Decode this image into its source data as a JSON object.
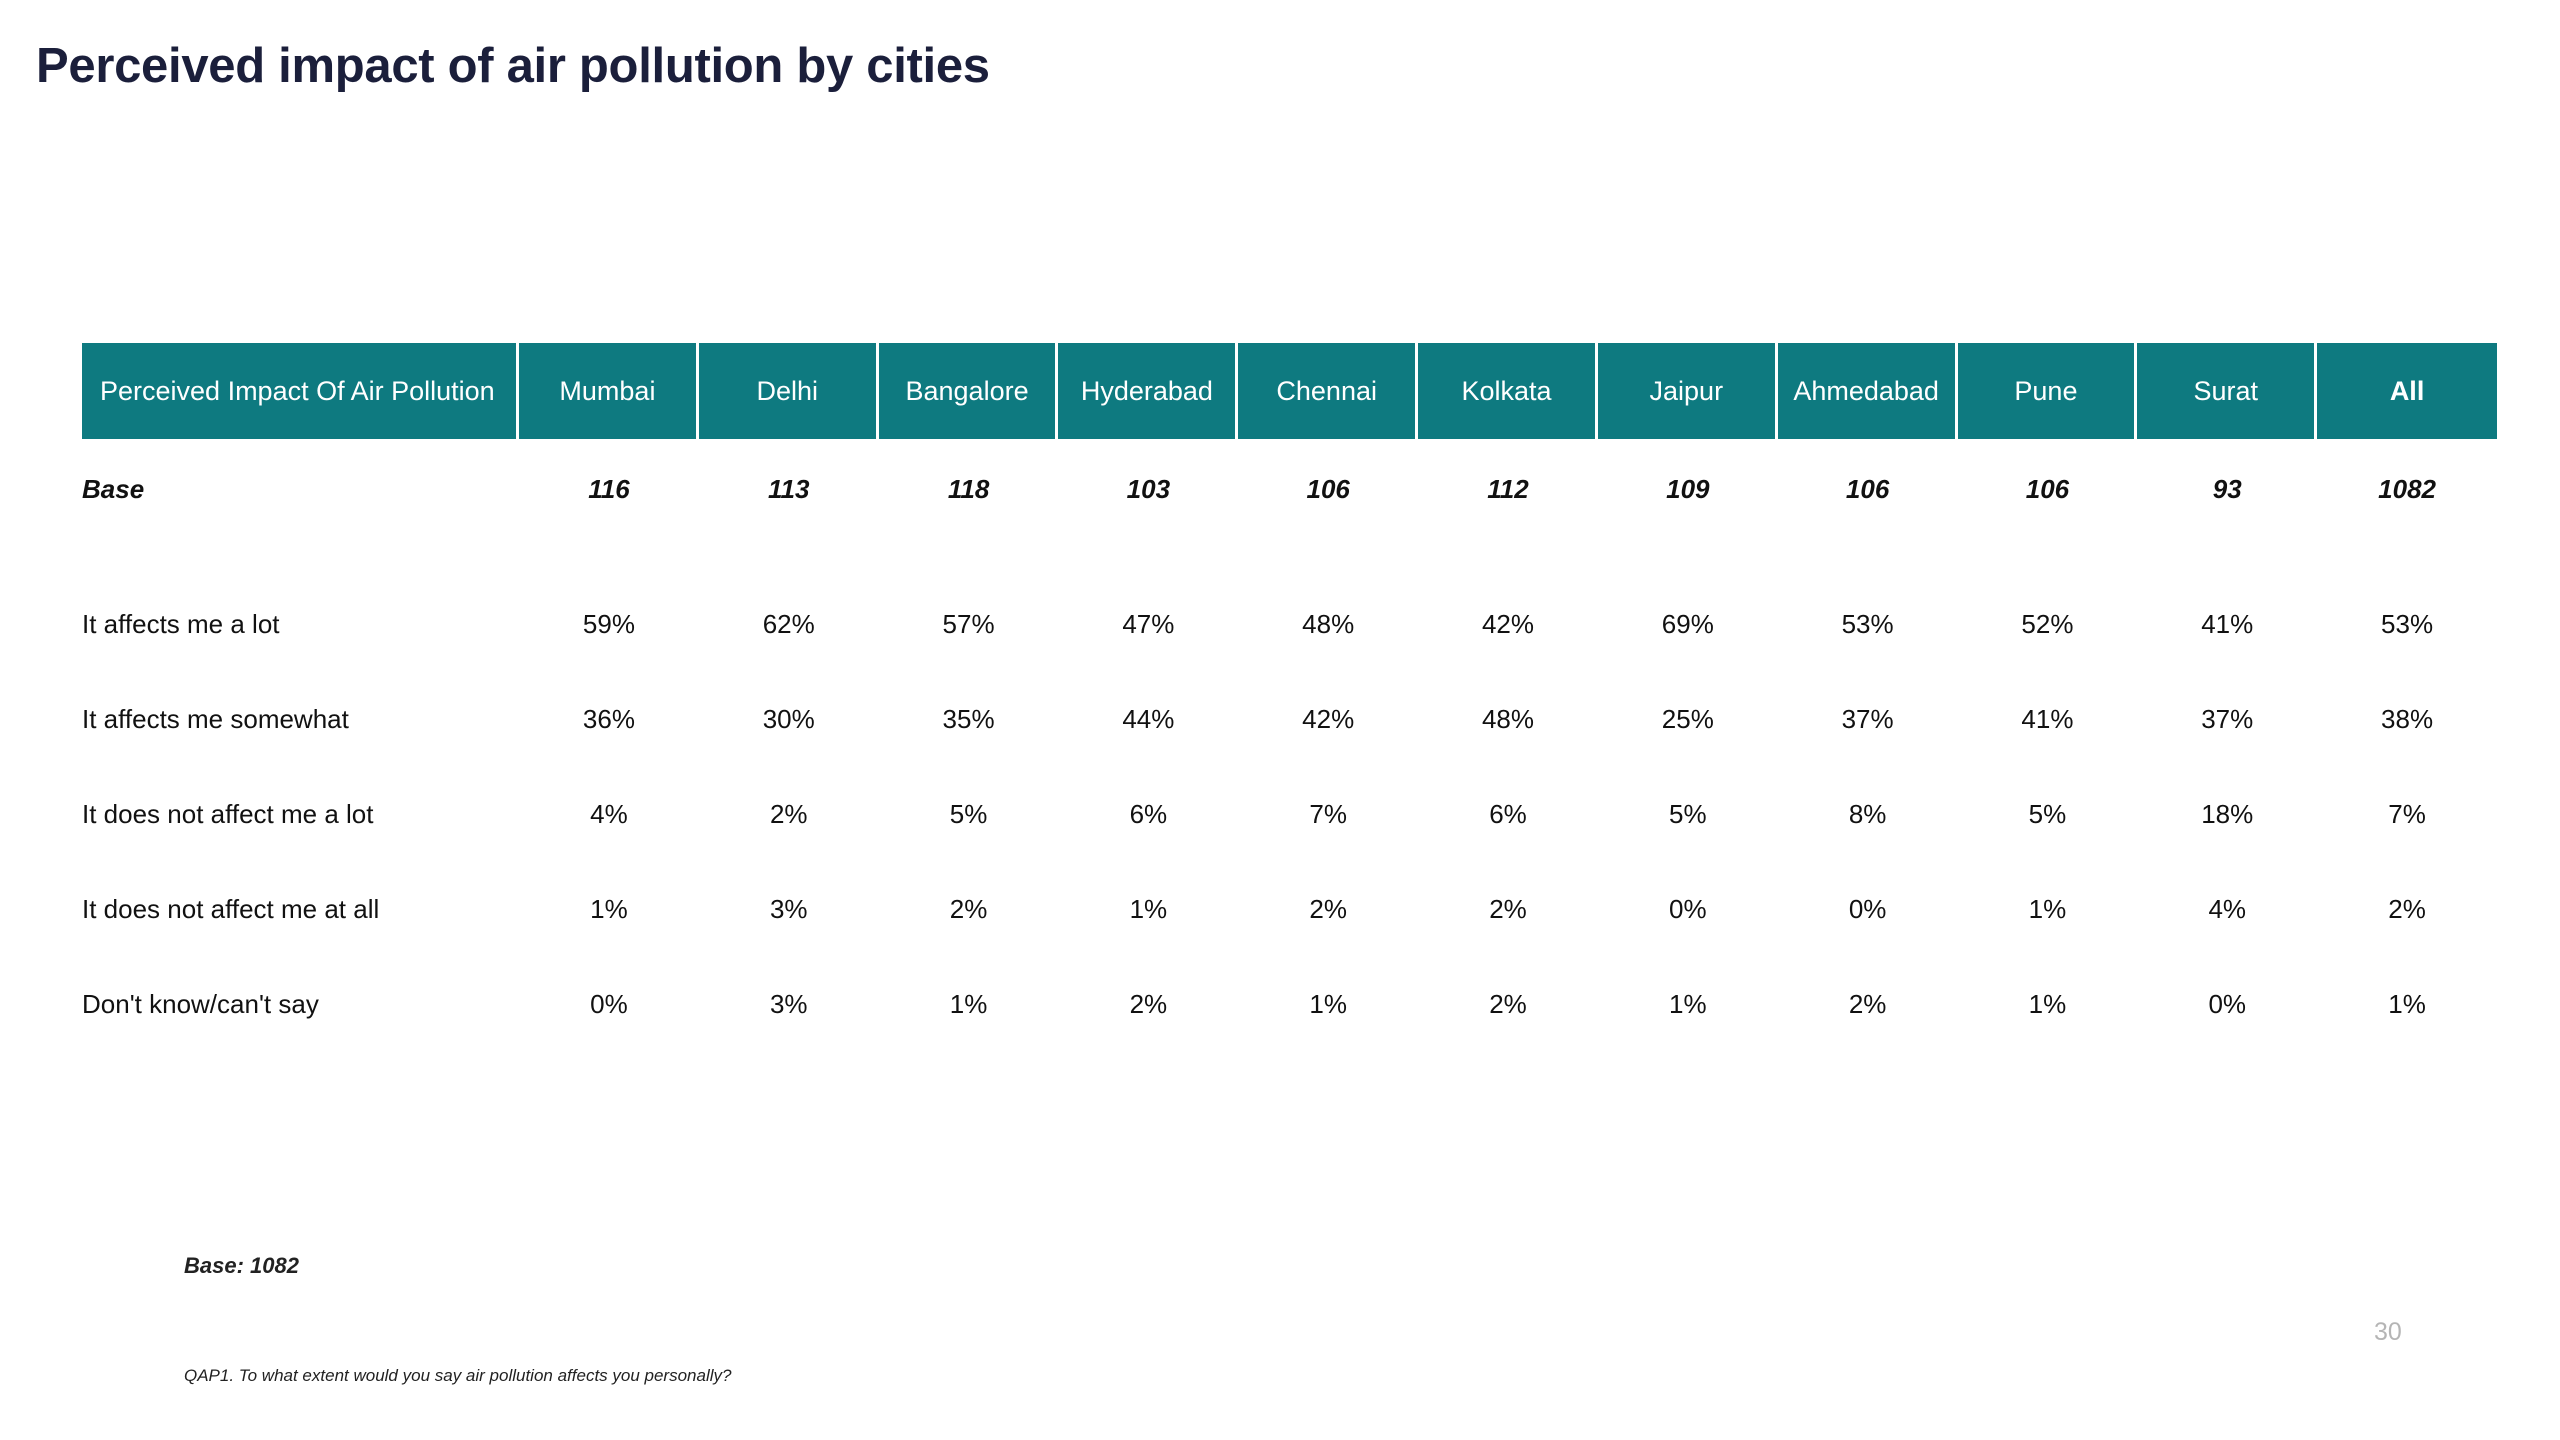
{
  "title": "Perceived impact of air pollution by cities",
  "table": {
    "header": [
      "Perceived Impact Of Air Pollution",
      "Mumbai",
      "Delhi",
      "Bangalore",
      "Hyderabad",
      "Chennai",
      "Kolkata",
      "Jaipur",
      "Ahmedabad",
      "Pune",
      "Surat",
      "All"
    ],
    "base_row": [
      "Base",
      "116",
      "113",
      "118",
      "103",
      "106",
      "112",
      "109",
      "106",
      "106",
      "93",
      "1082"
    ],
    "rows": [
      [
        "It affects me a lot",
        "59%",
        "62%",
        "57%",
        "47%",
        "48%",
        "42%",
        "69%",
        "53%",
        "52%",
        "41%",
        "53%"
      ],
      [
        "It affects me somewhat",
        "36%",
        "30%",
        "35%",
        "44%",
        "42%",
        "48%",
        "25%",
        "37%",
        "41%",
        "37%",
        "38%"
      ],
      [
        "It does not affect me a lot",
        "4%",
        "2%",
        "5%",
        "6%",
        "7%",
        "6%",
        "5%",
        "8%",
        "5%",
        "18%",
        "7%"
      ],
      [
        "It does not affect me at all",
        "1%",
        "3%",
        "2%",
        "1%",
        "2%",
        "2%",
        "0%",
        "0%",
        "1%",
        "4%",
        "2%"
      ],
      [
        "Don't know/can't say",
        "0%",
        "3%",
        "1%",
        "2%",
        "1%",
        "2%",
        "1%",
        "2%",
        "1%",
        "0%",
        "1%"
      ]
    ]
  },
  "footer": {
    "base_note": "Base: 1082",
    "page_number": "30",
    "question": "QAP1. To what extent would you say air pollution affects you personally?"
  },
  "colors": {
    "header_bg": "#0e7a80",
    "title": "#1b1f3b"
  }
}
